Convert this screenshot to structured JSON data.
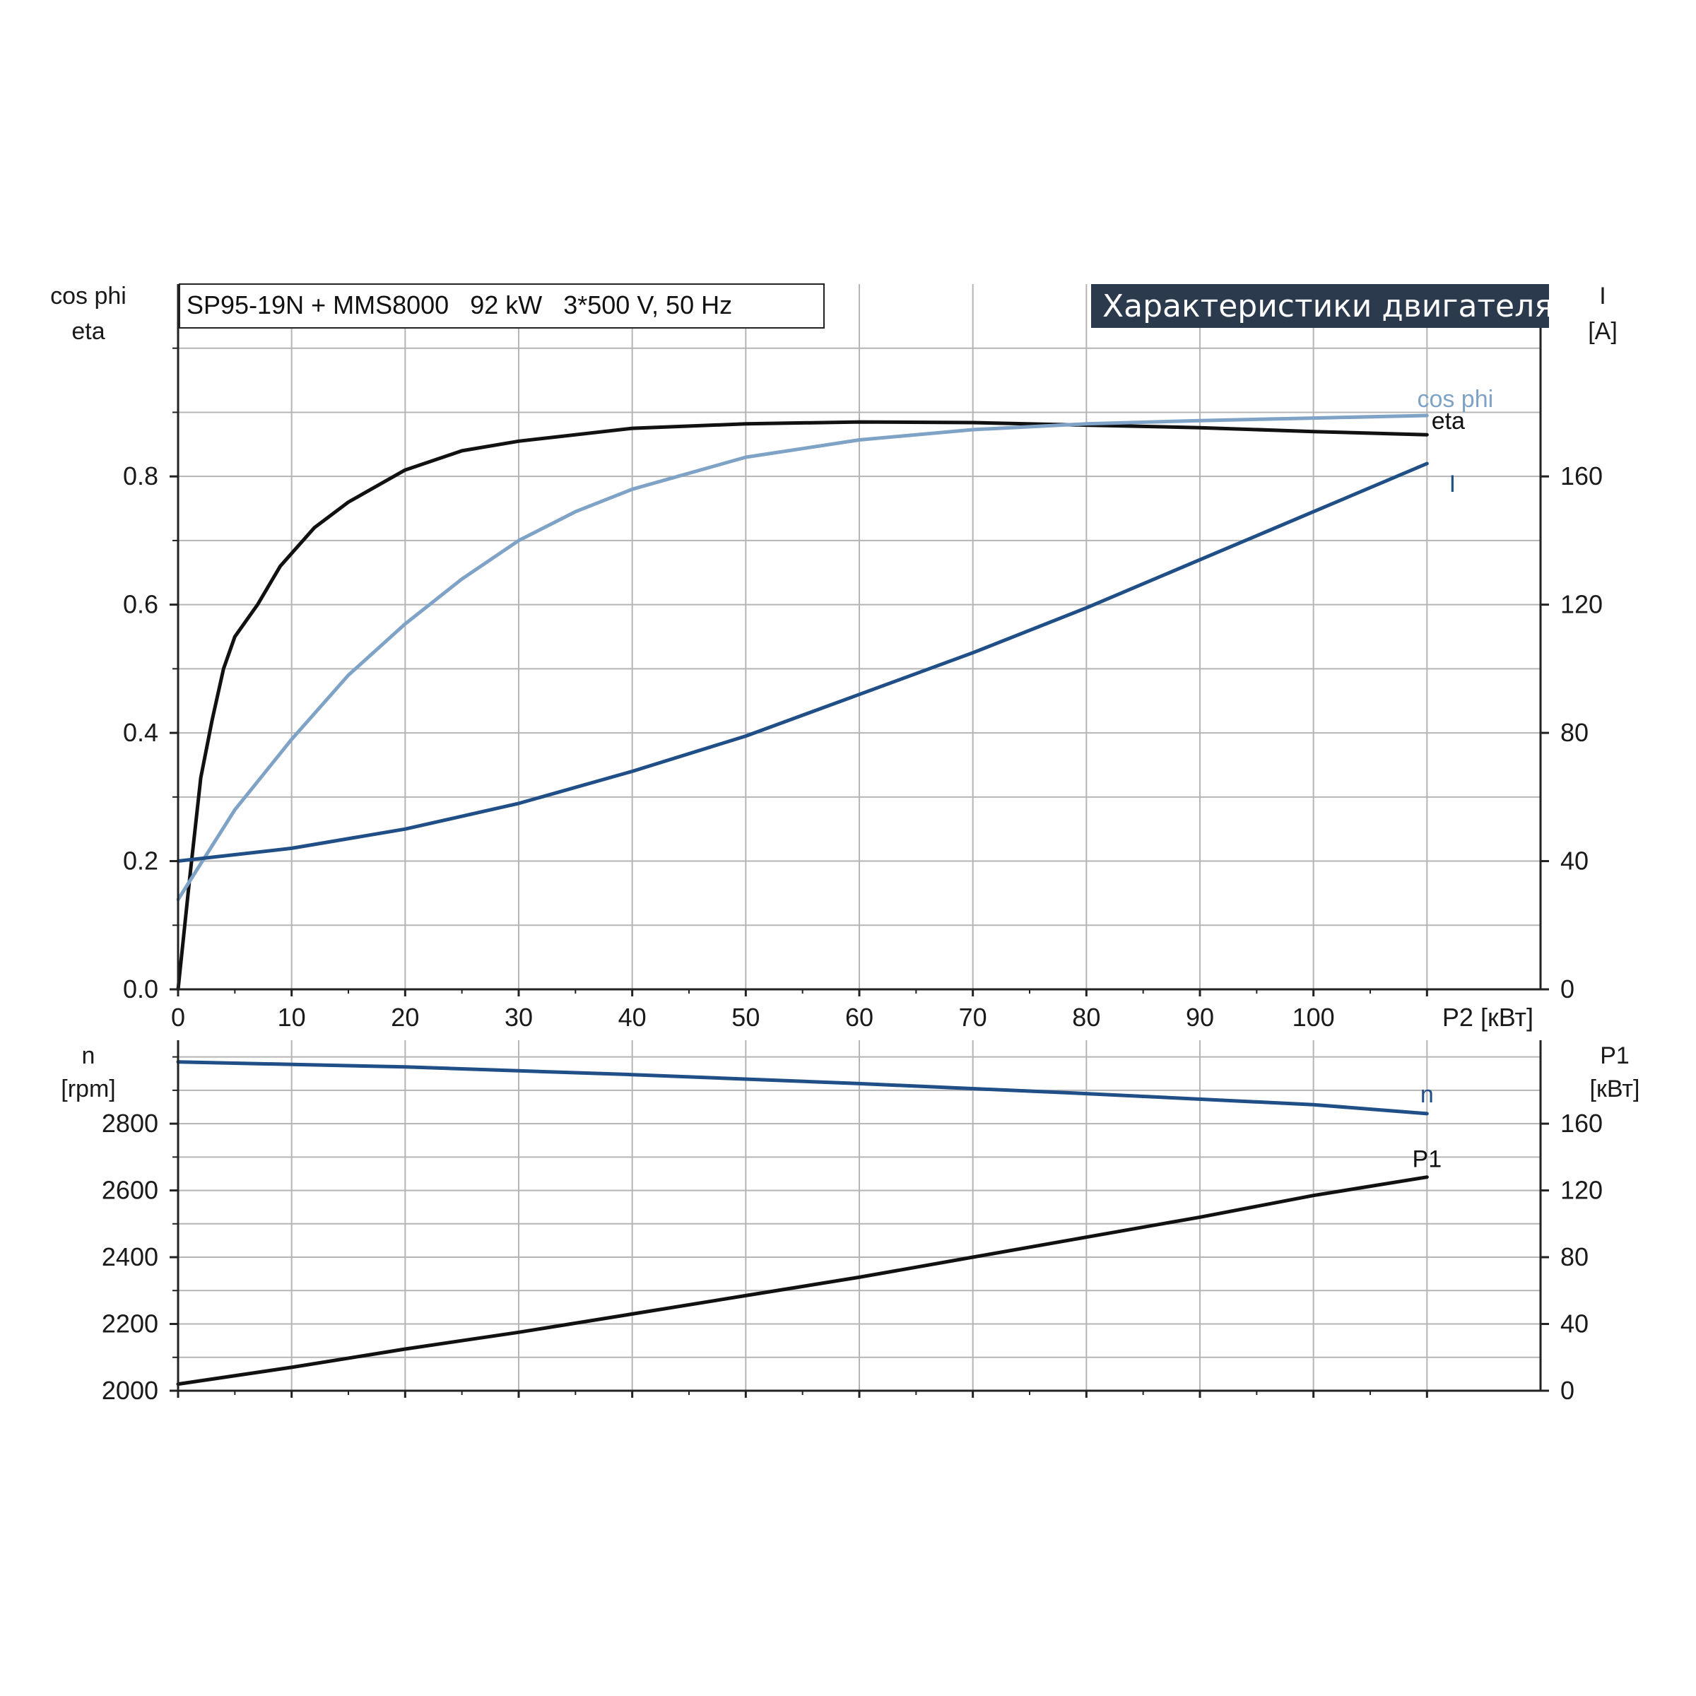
{
  "header": {
    "model_label": "SP95-19N + MMS8000   92 kW   3*500 V, 50 Hz",
    "banner": "Характеристики двигателя"
  },
  "colors": {
    "grid": "#b5b5b5",
    "axis": "#222222",
    "banner_bg": "#2b3a4d",
    "eta": "#111111",
    "cos_phi": "#7fa3c6",
    "current": "#1f4f86",
    "speed": "#1f4f86",
    "p1": "#111111"
  },
  "chart_data": [
    {
      "type": "line",
      "title": "SP95-19N + MMS8000   92 kW   3*500 V, 50 Hz",
      "xlabel": "P2 [кВт]",
      "x_ticks": [
        0,
        10,
        20,
        30,
        40,
        50,
        60,
        70,
        80,
        90,
        100
      ],
      "xlim": [
        0,
        120
      ],
      "left_axis": {
        "label_line1": "cos phi",
        "label_line2": "eta",
        "ylim": [
          0,
          1.1
        ],
        "ticks": [
          0.0,
          0.2,
          0.4,
          0.6,
          0.8
        ],
        "tick_labels": [
          "0.0",
          "0.2",
          "0.4",
          "0.6",
          "0.8"
        ]
      },
      "right_axis": {
        "label_line1": "I",
        "label_line2": "[A]",
        "ylim": [
          0,
          220
        ],
        "ticks": [
          0,
          40,
          80,
          120,
          160
        ],
        "tick_labels": [
          "0",
          "40",
          "80",
          "120",
          "160"
        ]
      },
      "grid": true,
      "series": [
        {
          "name": "eta",
          "axis": "left",
          "color_key": "eta",
          "x": [
            0,
            1,
            2,
            3,
            4,
            5,
            7,
            9,
            12,
            15,
            20,
            25,
            30,
            40,
            50,
            60,
            70,
            80,
            90,
            100,
            110
          ],
          "y": [
            0.0,
            0.17,
            0.33,
            0.42,
            0.5,
            0.55,
            0.6,
            0.66,
            0.72,
            0.76,
            0.81,
            0.84,
            0.855,
            0.875,
            0.882,
            0.885,
            0.884,
            0.88,
            0.876,
            0.87,
            0.865
          ]
        },
        {
          "name": "cos phi",
          "axis": "left",
          "color_key": "cos_phi",
          "x": [
            0,
            5,
            10,
            15,
            20,
            25,
            30,
            35,
            40,
            50,
            60,
            70,
            80,
            90,
            100,
            110
          ],
          "y": [
            0.14,
            0.28,
            0.39,
            0.49,
            0.57,
            0.64,
            0.7,
            0.745,
            0.78,
            0.83,
            0.857,
            0.873,
            0.882,
            0.887,
            0.891,
            0.895
          ]
        },
        {
          "name": "I",
          "axis": "right",
          "color_key": "current",
          "x": [
            0,
            10,
            20,
            30,
            40,
            50,
            60,
            70,
            80,
            90,
            100,
            110
          ],
          "y": [
            40,
            44,
            50,
            58,
            68,
            79,
            92,
            105,
            119,
            134,
            149,
            164
          ]
        }
      ]
    },
    {
      "type": "line",
      "xlabel": "",
      "xlim": [
        0,
        120
      ],
      "left_axis": {
        "label_line1": "n",
        "label_line2": "[rpm]",
        "ylim": [
          2000,
          3050
        ],
        "ticks": [
          2000,
          2200,
          2400,
          2600,
          2800
        ],
        "tick_labels": [
          "2000",
          "2200",
          "2400",
          "2600",
          "2800"
        ]
      },
      "right_axis": {
        "label_line1": "P1",
        "label_line2": "[кВт]",
        "ylim": [
          0,
          210
        ],
        "ticks": [
          0,
          40,
          80,
          120,
          160
        ],
        "tick_labels": [
          "0",
          "40",
          "80",
          "120",
          "160"
        ]
      },
      "grid": true,
      "series": [
        {
          "name": "n",
          "axis": "left",
          "color_key": "speed",
          "x": [
            0,
            20,
            40,
            60,
            80,
            100,
            110
          ],
          "y": [
            2985,
            2970,
            2947,
            2920,
            2890,
            2857,
            2830
          ]
        },
        {
          "name": "P1",
          "axis": "right",
          "color_key": "p1",
          "x": [
            0,
            10,
            20,
            30,
            40,
            50,
            60,
            70,
            80,
            90,
            100,
            110
          ],
          "y": [
            4,
            14,
            25,
            35,
            46,
            57,
            68,
            80,
            92,
            104,
            117,
            128
          ]
        }
      ]
    }
  ]
}
